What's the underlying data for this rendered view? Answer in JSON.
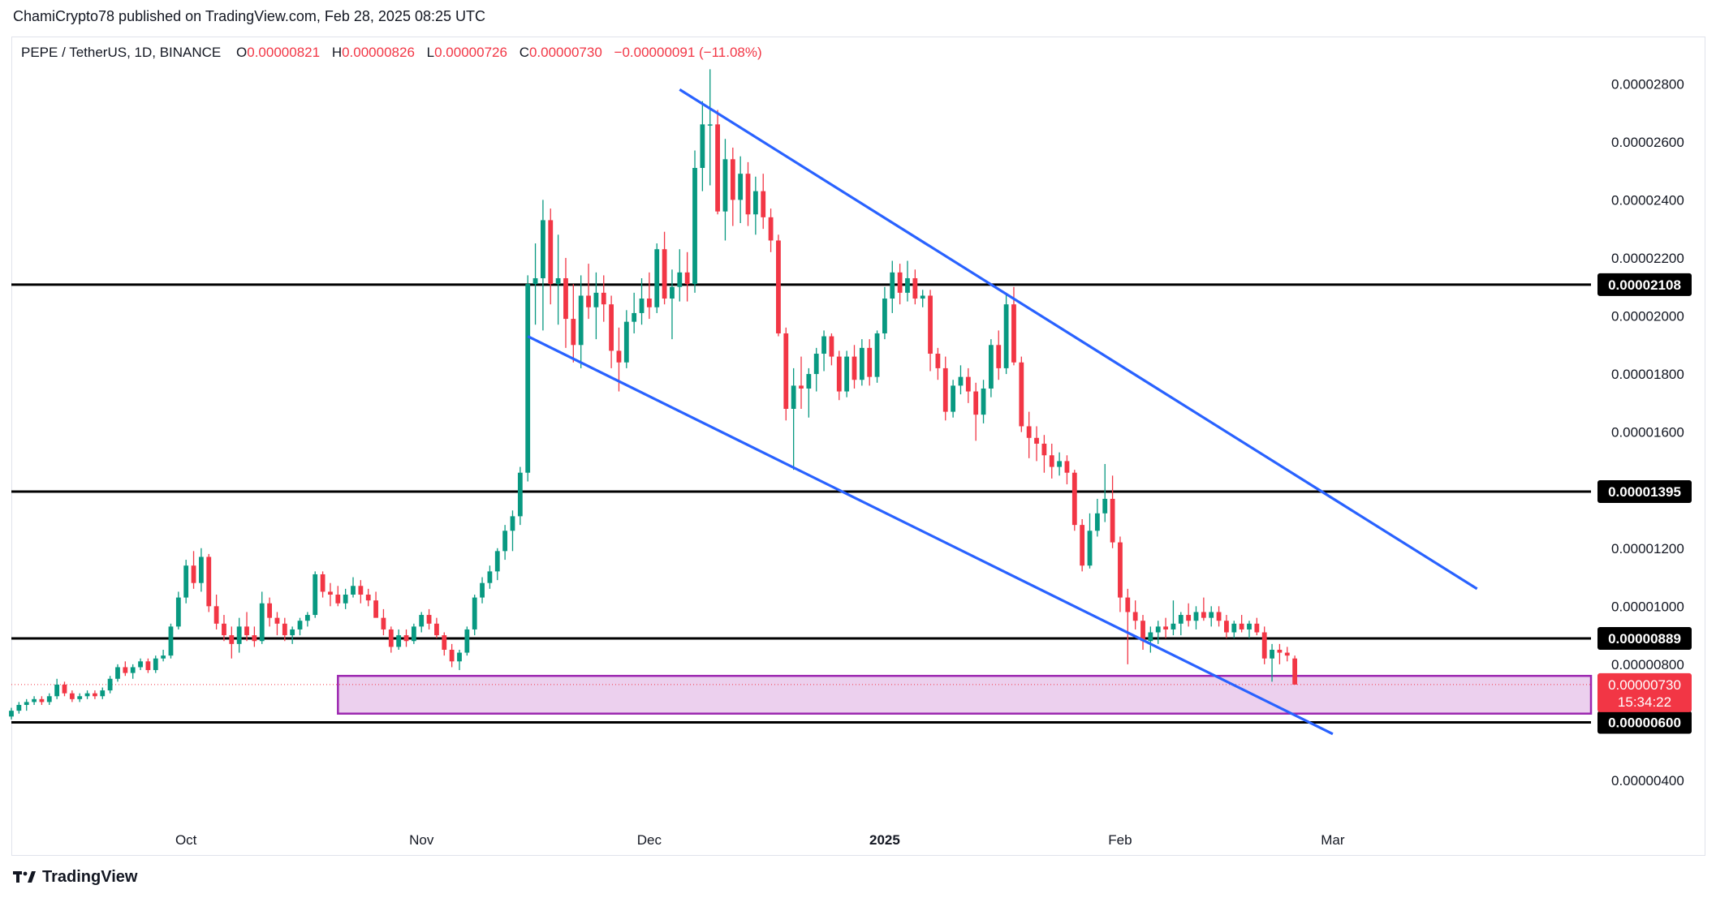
{
  "header": {
    "publish_line": "ChamiCrypto78 published on TradingView.com, Feb 28, 2025 08:25 UTC"
  },
  "legend": {
    "symbol": "PEPE / TetherUS, 1D, BINANCE",
    "open_label": "O",
    "open": "0.00000821",
    "high_label": "H",
    "high": "0.00000826",
    "low_label": "L",
    "low": "0.00000726",
    "close_label": "C",
    "close": "0.00000730",
    "change": "−0.00000091 (−11.08%)"
  },
  "brand": {
    "name": "TradingView",
    "icon": "tradingview-logo-icon"
  },
  "colors": {
    "up": "#089981",
    "down": "#f23645",
    "channel": "#2962ff",
    "level": "#000000",
    "zone_fill": "#ecd0ee",
    "zone_border": "#9c27b0"
  },
  "chart_data": {
    "type": "candlestick",
    "y_axis": {
      "ticks": [
        "0.00000400",
        "0.00000800",
        "0.00001000",
        "0.00001200",
        "0.00001600",
        "0.00001800",
        "0.00002000",
        "0.00002200",
        "0.00002400",
        "0.00002600",
        "0.00002800"
      ],
      "range": [
        2.1e-06,
        2.96e-05
      ]
    },
    "x_axis": {
      "labels": [
        "Oct",
        "Nov",
        "Dec",
        "2025",
        "Feb",
        "Mar"
      ],
      "label_dates": [
        "2024-10-01",
        "2024-11-01",
        "2024-12-01",
        "2025-01-01",
        "2025-02-01",
        "2025-03-01"
      ],
      "range": [
        "2024-09-08",
        "2025-04-04"
      ]
    },
    "horizontal_levels": [
      {
        "value": 2.108e-05,
        "label": "0.00002108"
      },
      {
        "value": 1.395e-05,
        "label": "0.00001395"
      },
      {
        "value": 8.89e-06,
        "label": "0.00000889"
      },
      {
        "value": 6e-06,
        "label": "0.00000600"
      }
    ],
    "current_price": {
      "value": 7.3e-06,
      "label": "0.00000730",
      "countdown": "15:34:22"
    },
    "zone": {
      "from_date": "2024-10-21",
      "to_date": "2025-04-04",
      "top": 7.6e-06,
      "bottom": 6.3e-06
    },
    "trendlines": [
      {
        "name": "channel-upper",
        "from": [
          "2024-12-05",
          2.78e-05
        ],
        "to": [
          "2025-03-20",
          1.06e-05
        ]
      },
      {
        "name": "channel-lower",
        "from": [
          "2024-11-15",
          1.93e-05
        ],
        "to": [
          "2025-03-01",
          5.6e-06
        ]
      }
    ],
    "candles_start_date": "2024-09-08",
    "candles": [
      [
        6.2e-06,
        6.5e-06,
        6.1e-06,
        6.4e-06
      ],
      [
        6.4e-06,
        6.7e-06,
        6.3e-06,
        6.6e-06
      ],
      [
        6.6e-06,
        6.8e-06,
        6.4e-06,
        6.7e-06
      ],
      [
        6.7e-06,
        6.9e-06,
        6.6e-06,
        6.8e-06
      ],
      [
        6.8e-06,
        6.9e-06,
        6.6e-06,
        6.7e-06
      ],
      [
        6.7e-06,
        7e-06,
        6.6e-06,
        6.9e-06
      ],
      [
        6.9e-06,
        7.5e-06,
        6.8e-06,
        7.3e-06
      ],
      [
        7.3e-06,
        7.4e-06,
        6.9e-06,
        7e-06
      ],
      [
        7e-06,
        7.1e-06,
        6.7e-06,
        6.8e-06
      ],
      [
        6.8e-06,
        7e-06,
        6.7e-06,
        6.9e-06
      ],
      [
        6.9e-06,
        7.1e-06,
        6.8e-06,
        7e-06
      ],
      [
        7e-06,
        7.1e-06,
        6.8e-06,
        6.9e-06
      ],
      [
        6.9e-06,
        7.2e-06,
        6.8e-06,
        7.1e-06
      ],
      [
        7.1e-06,
        7.6e-06,
        7e-06,
        7.5e-06
      ],
      [
        7.5e-06,
        8e-06,
        7.4e-06,
        7.9e-06
      ],
      [
        7.9e-06,
        8.1e-06,
        7.6e-06,
        7.7e-06
      ],
      [
        7.7e-06,
        8e-06,
        7.5e-06,
        7.9e-06
      ],
      [
        7.9e-06,
        8.2e-06,
        7.8e-06,
        8.1e-06
      ],
      [
        8.1e-06,
        8.2e-06,
        7.7e-06,
        7.8e-06
      ],
      [
        7.8e-06,
        8.3e-06,
        7.7e-06,
        8.2e-06
      ],
      [
        8.2e-06,
        8.5e-06,
        8.1e-06,
        8.3e-06
      ],
      [
        8.3e-06,
        9.4e-06,
        8.2e-06,
        9.3e-06
      ],
      [
        9.3e-06,
        1.05e-05,
        9.2e-06,
        1.03e-05
      ],
      [
        1.03e-05,
        1.16e-05,
        1.01e-05,
        1.14e-05
      ],
      [
        1.14e-05,
        1.19e-05,
        1.06e-05,
        1.08e-05
      ],
      [
        1.08e-05,
        1.2e-05,
        1.05e-05,
        1.17e-05
      ],
      [
        1.17e-05,
        1.18e-05,
        9.8e-06,
        1e-05
      ],
      [
        1e-05,
        1.04e-05,
        9.2e-06,
        9.4e-06
      ],
      [
        9.4e-06,
        9.7e-06,
        8.8e-06,
        9e-06
      ],
      [
        9e-06,
        9.3e-06,
        8.2e-06,
        8.7e-06
      ],
      [
        8.7e-06,
        9.6e-06,
        8.4e-06,
        9.3e-06
      ],
      [
        9.3e-06,
        9.8e-06,
        8.8e-06,
        9e-06
      ],
      [
        9e-06,
        9.3e-06,
        8.6e-06,
        8.8e-06
      ],
      [
        8.8e-06,
        1.05e-05,
        8.7e-06,
        1.01e-05
      ],
      [
        1.01e-05,
        1.03e-05,
        9.3e-06,
        9.6e-06
      ],
      [
        9.6e-06,
        9.8e-06,
        9e-06,
        9.4e-06
      ],
      [
        9.4e-06,
        9.6e-06,
        8.8e-06,
        9e-06
      ],
      [
        9e-06,
        9.3e-06,
        8.7e-06,
        9.2e-06
      ],
      [
        9.2e-06,
        9.6e-06,
        9e-06,
        9.5e-06
      ],
      [
        9.5e-06,
        9.8e-06,
        9.3e-06,
        9.7e-06
      ],
      [
        9.7e-06,
        1.12e-05,
        9.6e-06,
        1.11e-05
      ],
      [
        1.11e-05,
        1.12e-05,
        1.03e-05,
        1.05e-05
      ],
      [
        1.05e-05,
        1.08e-05,
        1e-05,
        1.04e-05
      ],
      [
        1.04e-05,
        1.07e-05,
        1e-05,
        1.01e-05
      ],
      [
        1.01e-05,
        1.06e-05,
        9.9e-06,
        1.04e-05
      ],
      [
        1.04e-05,
        1.1e-05,
        1.03e-05,
        1.07e-05
      ],
      [
        1.07e-05,
        1.09e-05,
        1.01e-05,
        1.04e-05
      ],
      [
        1.04e-05,
        1.06e-05,
        1e-05,
        1.02e-05
      ],
      [
        1.02e-05,
        1.05e-05,
        9.8e-06,
        9.6e-06
      ],
      [
        9.6e-06,
        9.9e-06,
        9e-06,
        9.2e-06
      ],
      [
        9.2e-06,
        9.3e-06,
        8.4e-06,
        8.6e-06
      ],
      [
        8.6e-06,
        9.2e-06,
        8.5e-06,
        9e-06
      ],
      [
        9e-06,
        9.2e-06,
        8.6e-06,
        8.8e-06
      ],
      [
        8.8e-06,
        9.4e-06,
        8.7e-06,
        9.3e-06
      ],
      [
        9.3e-06,
        9.8e-06,
        9.1e-06,
        9.7e-06
      ],
      [
        9.7e-06,
        9.9e-06,
        9.2e-06,
        9.4e-06
      ],
      [
        9.4e-06,
        9.6e-06,
        8.9e-06,
        9e-06
      ],
      [
        9e-06,
        9.1e-06,
        8.3e-06,
        8.5e-06
      ],
      [
        8.5e-06,
        8.7e-06,
        7.9e-06,
        8.1e-06
      ],
      [
        8.1e-06,
        8.5e-06,
        7.8e-06,
        8.4e-06
      ],
      [
        8.4e-06,
        9.3e-06,
        8.3e-06,
        9.2e-06
      ],
      [
        9.2e-06,
        1.04e-05,
        9e-06,
        1.03e-05
      ],
      [
        1.03e-05,
        1.1e-05,
        1.01e-05,
        1.08e-05
      ],
      [
        1.08e-05,
        1.14e-05,
        1.06e-05,
        1.12e-05
      ],
      [
        1.12e-05,
        1.2e-05,
        1.09e-05,
        1.19e-05
      ],
      [
        1.19e-05,
        1.28e-05,
        1.16e-05,
        1.26e-05
      ],
      [
        1.26e-05,
        1.33e-05,
        1.19e-05,
        1.31e-05
      ],
      [
        1.31e-05,
        1.48e-05,
        1.28e-05,
        1.46e-05
      ],
      [
        1.46e-05,
        2.14e-05,
        1.43e-05,
        2.11e-05
      ],
      [
        2.11e-05,
        2.25e-05,
        1.97e-05,
        2.13e-05
      ],
      [
        2.13e-05,
        2.4e-05,
        1.95e-05,
        2.33e-05
      ],
      [
        2.33e-05,
        2.37e-05,
        2.04e-05,
        2.11e-05
      ],
      [
        2.11e-05,
        2.28e-05,
        1.97e-05,
        2.13e-05
      ],
      [
        2.13e-05,
        2.2e-05,
        1.89e-05,
        1.99e-05
      ],
      [
        1.99e-05,
        2.11e-05,
        1.84e-05,
        1.9e-05
      ],
      [
        1.9e-05,
        2.14e-05,
        1.82e-05,
        2.07e-05
      ],
      [
        2.07e-05,
        2.18e-05,
        1.99e-05,
        2.03e-05
      ],
      [
        2.03e-05,
        2.15e-05,
        1.92e-05,
        2.08e-05
      ],
      [
        2.08e-05,
        2.14e-05,
        1.98e-05,
        2.04e-05
      ],
      [
        2.04e-05,
        2.07e-05,
        1.82e-05,
        1.88e-05
      ],
      [
        1.88e-05,
        1.96e-05,
        1.74e-05,
        1.84e-05
      ],
      [
        1.84e-05,
        2.02e-05,
        1.82e-05,
        1.98e-05
      ],
      [
        1.98e-05,
        2.08e-05,
        1.94e-05,
        2.01e-05
      ],
      [
        2.01e-05,
        2.13e-05,
        1.97e-05,
        2.06e-05
      ],
      [
        2.06e-05,
        2.15e-05,
        1.99e-05,
        2.03e-05
      ],
      [
        2.03e-05,
        2.25e-05,
        2.01e-05,
        2.23e-05
      ],
      [
        2.23e-05,
        2.29e-05,
        2.04e-05,
        2.06e-05
      ],
      [
        2.06e-05,
        2.16e-05,
        1.92e-05,
        2.1e-05
      ],
      [
        2.1e-05,
        2.23e-05,
        2.05e-05,
        2.15e-05
      ],
      [
        2.15e-05,
        2.22e-05,
        2.05e-05,
        2.11e-05
      ],
      [
        2.11e-05,
        2.57e-05,
        2.08e-05,
        2.51e-05
      ],
      [
        2.51e-05,
        2.74e-05,
        2.43e-05,
        2.66e-05
      ],
      [
        2.66e-05,
        2.85e-05,
        2.45e-05,
        2.66e-05
      ],
      [
        2.66e-05,
        2.71e-05,
        2.35e-05,
        2.36e-05
      ],
      [
        2.36e-05,
        2.61e-05,
        2.26e-05,
        2.54e-05
      ],
      [
        2.54e-05,
        2.58e-05,
        2.31e-05,
        2.4e-05
      ],
      [
        2.4e-05,
        2.55e-05,
        2.32e-05,
        2.49e-05
      ],
      [
        2.49e-05,
        2.53e-05,
        2.31e-05,
        2.35e-05
      ],
      [
        2.35e-05,
        2.48e-05,
        2.28e-05,
        2.43e-05
      ],
      [
        2.43e-05,
        2.49e-05,
        2.3e-05,
        2.34e-05
      ],
      [
        2.34e-05,
        2.37e-05,
        2.22e-05,
        2.26e-05
      ],
      [
        2.26e-05,
        2.28e-05,
        1.93e-05,
        1.94e-05
      ],
      [
        1.94e-05,
        1.96e-05,
        1.64e-05,
        1.68e-05
      ],
      [
        1.68e-05,
        1.82e-05,
        1.47e-05,
        1.76e-05
      ],
      [
        1.76e-05,
        1.86e-05,
        1.68e-05,
        1.75e-05
      ],
      [
        1.75e-05,
        1.82e-05,
        1.65e-05,
        1.8e-05
      ],
      [
        1.8e-05,
        1.89e-05,
        1.74e-05,
        1.87e-05
      ],
      [
        1.87e-05,
        1.95e-05,
        1.81e-05,
        1.93e-05
      ],
      [
        1.93e-05,
        1.94e-05,
        1.83e-05,
        1.86e-05
      ],
      [
        1.86e-05,
        1.88e-05,
        1.71e-05,
        1.74e-05
      ],
      [
        1.74e-05,
        1.88e-05,
        1.72e-05,
        1.86e-05
      ],
      [
        1.86e-05,
        1.9e-05,
        1.75e-05,
        1.78e-05
      ],
      [
        1.78e-05,
        1.92e-05,
        1.76e-05,
        1.89e-05
      ],
      [
        1.89e-05,
        1.92e-05,
        1.76e-05,
        1.79e-05
      ],
      [
        1.79e-05,
        1.95e-05,
        1.77e-05,
        1.94e-05
      ],
      [
        1.94e-05,
        2.1e-05,
        1.92e-05,
        2.06e-05
      ],
      [
        2.06e-05,
        2.19e-05,
        2.01e-05,
        2.15e-05
      ],
      [
        2.15e-05,
        2.18e-05,
        2.04e-05,
        2.08e-05
      ],
      [
        2.08e-05,
        2.19e-05,
        2.05e-05,
        2.13e-05
      ],
      [
        2.13e-05,
        2.16e-05,
        2.04e-05,
        2.06e-05
      ],
      [
        2.06e-05,
        2.09e-05,
        2.03e-05,
        2.07e-05
      ],
      [
        2.07e-05,
        2.09e-05,
        1.81e-05,
        1.87e-05
      ],
      [
        1.87e-05,
        1.89e-05,
        1.78e-05,
        1.82e-05
      ],
      [
        1.82e-05,
        1.86e-05,
        1.64e-05,
        1.67e-05
      ],
      [
        1.67e-05,
        1.78e-05,
        1.65e-05,
        1.76e-05
      ],
      [
        1.76e-05,
        1.83e-05,
        1.73e-05,
        1.79e-05
      ],
      [
        1.79e-05,
        1.82e-05,
        1.7e-05,
        1.74e-05
      ],
      [
        1.74e-05,
        1.77e-05,
        1.57e-05,
        1.66e-05
      ],
      [
        1.66e-05,
        1.78e-05,
        1.63e-05,
        1.75e-05
      ],
      [
        1.75e-05,
        1.92e-05,
        1.72e-05,
        1.9e-05
      ],
      [
        1.9e-05,
        1.95e-05,
        1.78e-05,
        1.82e-05
      ],
      [
        1.82e-05,
        2.08e-05,
        1.8e-05,
        2.04e-05
      ],
      [
        2.04e-05,
        2.1e-05,
        1.83e-05,
        1.84e-05
      ],
      [
        1.84e-05,
        1.86e-05,
        1.6e-05,
        1.62e-05
      ],
      [
        1.62e-05,
        1.67e-05,
        1.51e-05,
        1.58e-05
      ],
      [
        1.58e-05,
        1.62e-05,
        1.5e-05,
        1.56e-05
      ],
      [
        1.56e-05,
        1.59e-05,
        1.46e-05,
        1.52e-05
      ],
      [
        1.52e-05,
        1.56e-05,
        1.44e-05,
        1.48e-05
      ],
      [
        1.48e-05,
        1.53e-05,
        1.45e-05,
        1.5e-05
      ],
      [
        1.5e-05,
        1.52e-05,
        1.42e-05,
        1.46e-05
      ],
      [
        1.46e-05,
        1.47e-05,
        1.26e-05,
        1.28e-05
      ],
      [
        1.28e-05,
        1.3e-05,
        1.12e-05,
        1.14e-05
      ],
      [
        1.14e-05,
        1.32e-05,
        1.13e-05,
        1.26e-05
      ],
      [
        1.26e-05,
        1.37e-05,
        1.24e-05,
        1.32e-05
      ],
      [
        1.32e-05,
        1.49e-05,
        1.29e-05,
        1.37e-05
      ],
      [
        1.37e-05,
        1.45e-05,
        1.2e-05,
        1.22e-05
      ],
      [
        1.22e-05,
        1.24e-05,
        9.8e-06,
        1.03e-05
      ],
      [
        1.03e-05,
        1.06e-05,
        8e-06,
        9.8e-06
      ],
      [
        9.8e-06,
        1.02e-05,
        9.2e-06,
        9.5e-06
      ],
      [
        9.5e-06,
        9.7e-06,
        8.5e-06,
        8.8e-06
      ],
      [
        8.8e-06,
        9.3e-06,
        8.4e-06,
        9.1e-06
      ],
      [
        9.1e-06,
        9.5e-06,
        8.7e-06,
        9.3e-06
      ],
      [
        9.3e-06,
        9.6e-06,
        8.9e-06,
        9.2e-06
      ],
      [
        9.2e-06,
        1.02e-05,
        9e-06,
        9.4e-06
      ],
      [
        9.4e-06,
        9.8e-06,
        9e-06,
        9.7e-06
      ],
      [
        9.7e-06,
        1.01e-05,
        9.3e-06,
        9.5e-06
      ],
      [
        9.5e-06,
        1e-05,
        9.2e-06,
        9.8e-06
      ],
      [
        9.8e-06,
        1.03e-05,
        9.5e-06,
        9.6e-06
      ],
      [
        9.6e-06,
        1e-05,
        9.3e-06,
        9.8e-06
      ],
      [
        9.8e-06,
        1e-05,
        9.3e-06,
        9.5e-06
      ],
      [
        9.5e-06,
        9.7e-06,
        8.9e-06,
        9.1e-06
      ],
      [
        9.1e-06,
        9.5e-06,
        8.9e-06,
        9.4e-06
      ],
      [
        9.4e-06,
        9.7e-06,
        9.1e-06,
        9.2e-06
      ],
      [
        9.2e-06,
        9.5e-06,
        8.9e-06,
        9.4e-06
      ],
      [
        9.4e-06,
        9.6e-06,
        9e-06,
        9.1e-06
      ],
      [
        9.1e-06,
        9.3e-06,
        8e-06,
        8.2e-06
      ],
      [
        8.2e-06,
        8.7e-06,
        7.4e-06,
        8.5e-06
      ],
      [
        8.5e-06,
        8.7e-06,
        8e-06,
        8.4e-06
      ],
      [
        8.4e-06,
        8.6e-06,
        8.1e-06,
        8.3e-06
      ],
      [
        8.2e-06,
        8.3e-06,
        7.3e-06,
        7.3e-06
      ]
    ]
  }
}
